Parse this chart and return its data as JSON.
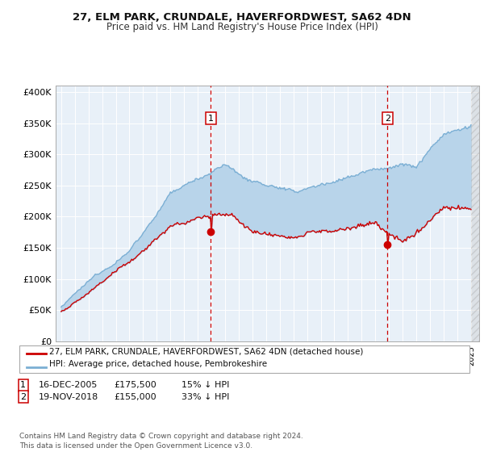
{
  "title": "27, ELM PARK, CRUNDALE, HAVERFORDWEST, SA62 4DN",
  "subtitle": "Price paid vs. HM Land Registry's House Price Index (HPI)",
  "ylabel_ticks": [
    "£0",
    "£50K",
    "£100K",
    "£150K",
    "£200K",
    "£250K",
    "£300K",
    "£350K",
    "£400K"
  ],
  "ytick_values": [
    0,
    50000,
    100000,
    150000,
    200000,
    250000,
    300000,
    350000,
    400000
  ],
  "ylim": [
    0,
    410000
  ],
  "xlim_start": 1994.6,
  "xlim_end": 2025.6,
  "sale1_year": 2005.96,
  "sale1_price": 175500,
  "sale2_year": 2018.88,
  "sale2_price": 155000,
  "hpi_color": "#7bafd4",
  "price_color": "#cc0000",
  "fill_color": "#b8d4ea",
  "background_color": "#e8f0f8",
  "grid_color": "#ffffff",
  "legend_line1": "27, ELM PARK, CRUNDALE, HAVERFORDWEST, SA62 4DN (detached house)",
  "legend_line2": "HPI: Average price, detached house, Pembrokeshire",
  "footer": "Contains HM Land Registry data © Crown copyright and database right 2024.\nThis data is licensed under the Open Government Licence v3.0."
}
